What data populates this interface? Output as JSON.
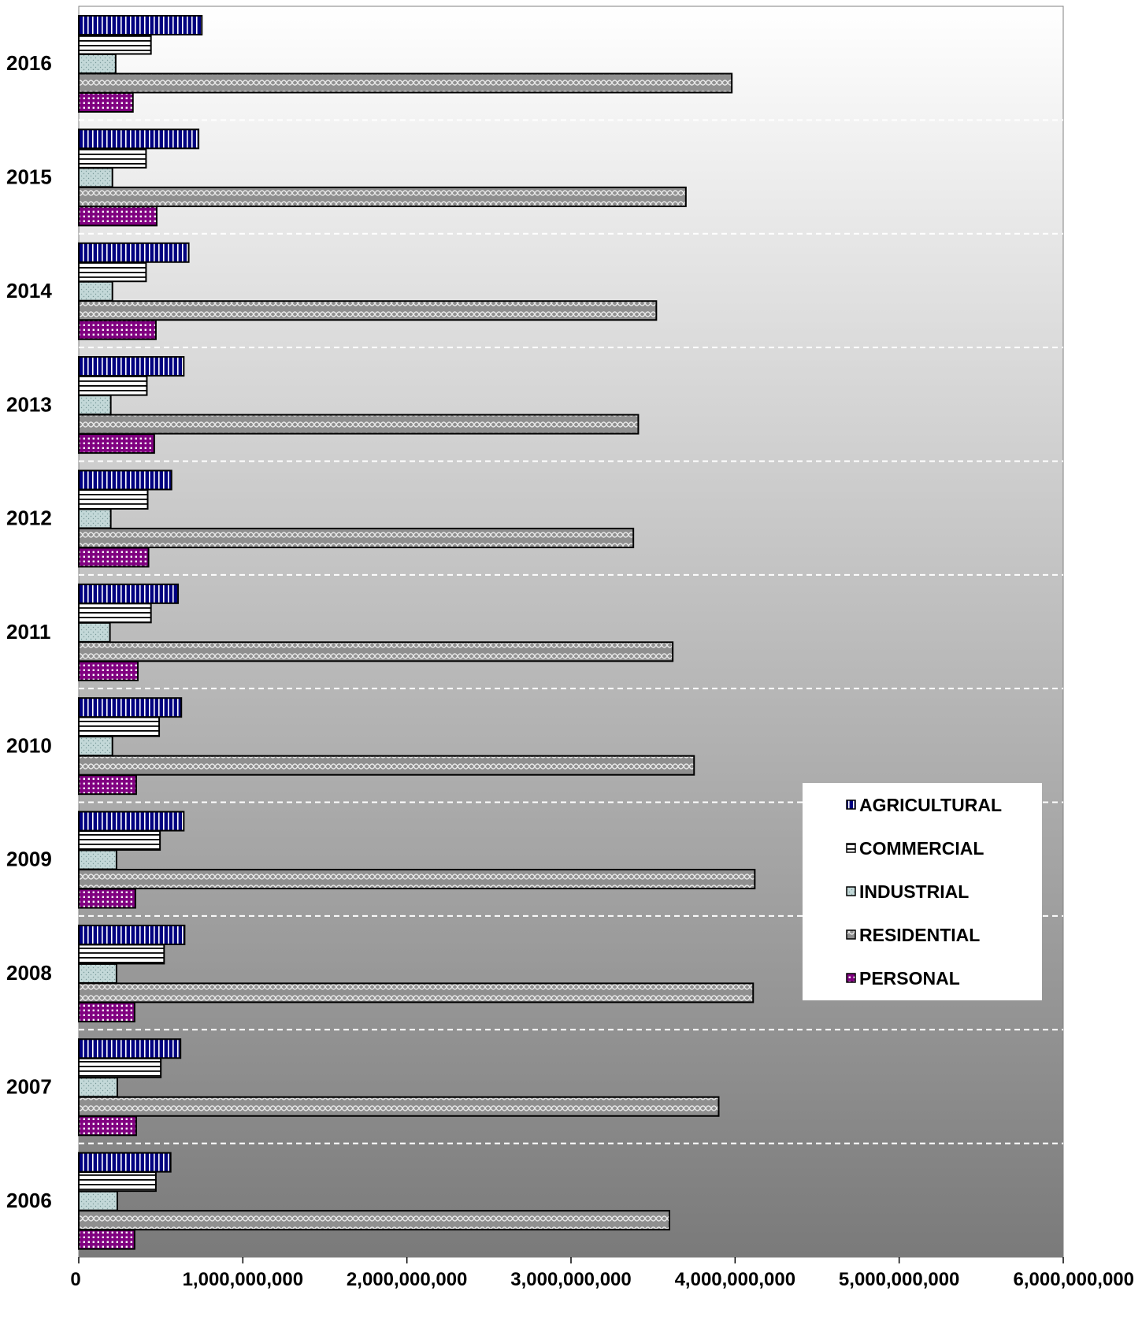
{
  "chart_data": {
    "type": "bar",
    "orientation": "horizontal",
    "categories": [
      "2016",
      "2015",
      "2014",
      "2013",
      "2012",
      "2011",
      "2010",
      "2009",
      "2008",
      "2007",
      "2006"
    ],
    "series": [
      {
        "name": "AGRICULTURAL",
        "color": "#000080",
        "values": [
          750000000,
          730000000,
          670000000,
          640000000,
          565000000,
          605000000,
          625000000,
          640000000,
          645000000,
          620000000,
          560000000
        ]
      },
      {
        "name": "COMMERCIAL",
        "color": "#ffffff",
        "values": [
          440000000,
          410000000,
          410000000,
          415000000,
          420000000,
          440000000,
          490000000,
          495000000,
          520000000,
          500000000,
          470000000
        ]
      },
      {
        "name": "INDUSTRIAL",
        "color": "#c0d6d6",
        "values": [
          225000000,
          205000000,
          205000000,
          195000000,
          195000000,
          190000000,
          205000000,
          230000000,
          230000000,
          235000000,
          235000000
        ]
      },
      {
        "name": "RESIDENTIAL",
        "color": "#909090",
        "values": [
          3980000000,
          3700000000,
          3520000000,
          3410000000,
          3380000000,
          3620000000,
          3750000000,
          4120000000,
          4110000000,
          3900000000,
          3600000000
        ]
      },
      {
        "name": "PERSONAL",
        "color": "#800080",
        "values": [
          330000000,
          475000000,
          470000000,
          460000000,
          425000000,
          360000000,
          350000000,
          345000000,
          340000000,
          350000000,
          340000000
        ]
      }
    ],
    "xlim": [
      0,
      6000000000
    ],
    "xticks": [
      0,
      1000000000,
      2000000000,
      3000000000,
      4000000000,
      5000000000,
      6000000000
    ],
    "xtick_labels": [
      "0",
      "1,000,000,000",
      "2,000,000,000",
      "3,000,000,000",
      "4,000,000,000",
      "5,000,000,000",
      "6,000,000,000"
    ],
    "title": "",
    "xlabel": "",
    "ylabel": "",
    "legend_position": "right",
    "background": "gradient white (top) to gray (bottom)",
    "grid": "dashed horizontal lines between categories"
  }
}
